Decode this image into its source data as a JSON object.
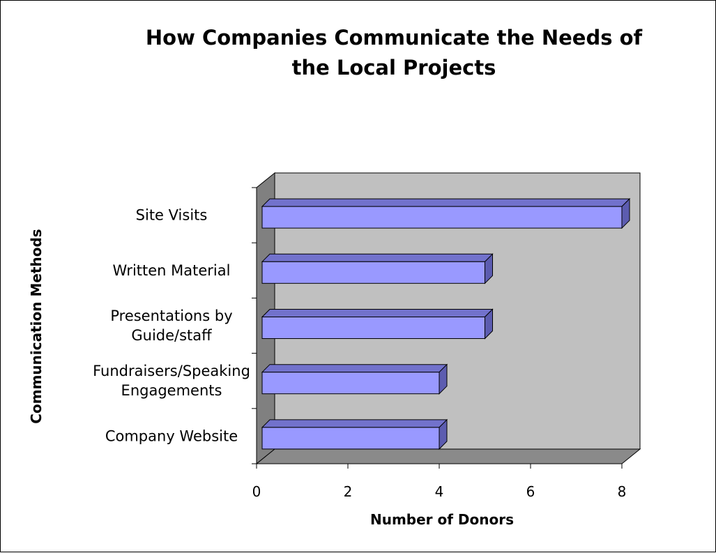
{
  "chart_data": {
    "type": "bar",
    "orientation": "horizontal",
    "three_d": true,
    "title_lines": [
      "How Companies Communicate the Needs of",
      "the Local Projects"
    ],
    "categories": [
      [
        "Site Visits"
      ],
      [
        "Written Material"
      ],
      [
        "Presentations by",
        "Guide/staff"
      ],
      [
        "Fundraisers/Speaking",
        "Engagements"
      ],
      [
        "Company Website"
      ]
    ],
    "values": [
      8,
      5,
      5,
      4,
      4
    ],
    "xlabel": "Number of Donors",
    "ylabel": "Communication Methods",
    "xlim": [
      0,
      8
    ],
    "xticks": [
      "0",
      "2",
      "4",
      "6",
      "8"
    ],
    "grid": false,
    "legend": "none",
    "colors": {
      "bar_front": "#9999ff",
      "bar_top": "#7272cc",
      "bar_side": "#5c5cb0",
      "wall_back": "#c0c0c0",
      "wall_side": "#808080",
      "floor": "#8a8a8a",
      "outline": "#000000"
    }
  }
}
